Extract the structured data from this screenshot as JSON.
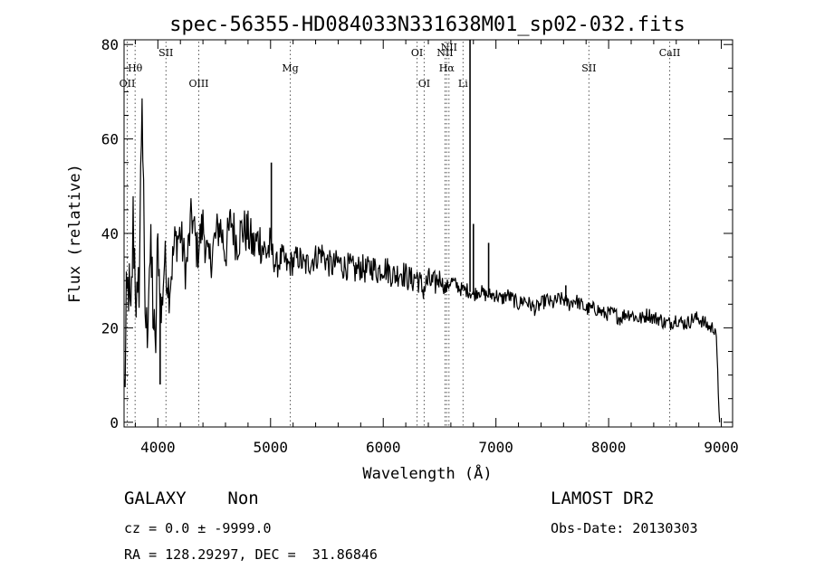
{
  "chart_data": {
    "type": "line",
    "title": "spec-56355-HD084033N331638M01_sp02-032.fits",
    "xlabel": "Wavelength (Å)",
    "ylabel": "Flux (relative)",
    "xlim": [
      3700,
      9100
    ],
    "ylim": [
      -1,
      81
    ],
    "x_ticks": [
      4000,
      5000,
      6000,
      7000,
      8000,
      9000
    ],
    "y_ticks": [
      0,
      20,
      40,
      60,
      80
    ],
    "grid": false,
    "legend": "none",
    "line_color": "#000000",
    "marker_color": "#555555",
    "series": [
      {
        "x": [
          3705,
          3720,
          3740,
          3760,
          3780,
          3800,
          3820,
          3840,
          3860,
          3880,
          3900,
          3925,
          3950,
          3975,
          4000,
          4030,
          4060,
          4100,
          4150,
          4200,
          4250,
          4300,
          4350,
          4400,
          4450,
          4500,
          4550,
          4600,
          4650,
          4700,
          4750,
          4800,
          4850,
          4900,
          4950,
          5000,
          5050,
          5100,
          5150,
          5200,
          5250,
          5300,
          5350,
          5400,
          5450,
          5500,
          5550,
          5600,
          5650,
          5700,
          5750,
          5800,
          5850,
          5900,
          5950,
          6000,
          6050,
          6100,
          6150,
          6200,
          6250,
          6300,
          6350,
          6400,
          6450,
          6500,
          6550,
          6600,
          6650,
          6700,
          6750,
          6800,
          6850,
          6900,
          6950,
          7000,
          7050,
          7100,
          7150,
          7200,
          7250,
          7300,
          7350,
          7400,
          7450,
          7500,
          7550,
          7600,
          7650,
          7700,
          7750,
          7800,
          7850,
          7900,
          7950,
          8000,
          8050,
          8100,
          8150,
          8200,
          8250,
          8300,
          8350,
          8400,
          8450,
          8500,
          8550,
          8600,
          8650,
          8700,
          8750,
          8800,
          8850,
          8900,
          8950,
          8985
        ],
        "y": [
          6,
          22,
          30,
          18,
          42,
          32,
          20,
          38,
          73,
          28,
          18,
          35,
          30,
          12,
          38,
          22,
          35,
          28,
          38,
          40,
          32,
          44,
          36,
          42,
          33,
          38,
          42,
          36,
          43,
          38,
          41,
          40,
          37,
          39,
          36,
          37,
          33,
          35,
          33,
          34,
          35,
          33,
          34,
          35,
          36,
          34,
          33,
          34,
          33,
          33,
          32,
          33,
          32,
          33,
          32,
          33,
          32,
          31,
          32,
          31,
          30,
          31,
          28,
          30,
          29,
          31,
          28,
          30,
          29,
          28,
          28,
          27,
          28,
          27,
          27,
          27,
          26,
          27,
          26,
          25,
          26,
          25,
          24,
          25,
          26,
          25,
          26,
          26,
          25,
          26,
          25,
          24,
          24,
          24,
          23,
          23,
          23,
          22,
          23,
          23,
          22,
          22,
          23,
          22,
          22,
          21,
          21,
          22,
          21,
          21,
          22,
          22,
          21,
          20,
          20,
          0
        ]
      }
    ],
    "spikes": [
      {
        "x": 3860,
        "y": 73
      },
      {
        "x": 4020,
        "y": 8
      },
      {
        "x": 5007,
        "y": 55
      },
      {
        "x": 6770,
        "y": 81
      },
      {
        "x": 6800,
        "y": 42
      },
      {
        "x": 6935,
        "y": 38
      },
      {
        "x": 7620,
        "y": 29
      }
    ],
    "lines": [
      {
        "label": "Hθ",
        "x": 3798,
        "row": 2
      },
      {
        "label": "OII",
        "x": 3728,
        "row": 3
      },
      {
        "label": "SII",
        "x": 4072,
        "row": 1
      },
      {
        "label": "OIII",
        "x": 4363,
        "row": 3
      },
      {
        "label": "Mg",
        "x": 5175,
        "row": 2
      },
      {
        "label": "OI",
        "x": 6300,
        "row": 1
      },
      {
        "label": "OI",
        "x": 6363,
        "row": 3
      },
      {
        "label": "NII",
        "x": 6548,
        "row": 1
      },
      {
        "label": "Hα",
        "x": 6563,
        "row": 2
      },
      {
        "label": "NII",
        "x": 6583,
        "row": 0
      },
      {
        "label": "Li",
        "x": 6708,
        "row": 3
      },
      {
        "label": "SII",
        "x": 7825,
        "row": 2
      },
      {
        "label": "CaII",
        "x": 8542,
        "row": 1
      }
    ]
  },
  "info": {
    "class_line": "GALAXY    Non",
    "cz_line": "cz = 0.0 ± -9999.0",
    "radec_line": "RA = 128.29297, DEC =  31.86846",
    "survey_line": "LAMOST DR2",
    "obsdate_line": "Obs-Date: 20130303"
  }
}
